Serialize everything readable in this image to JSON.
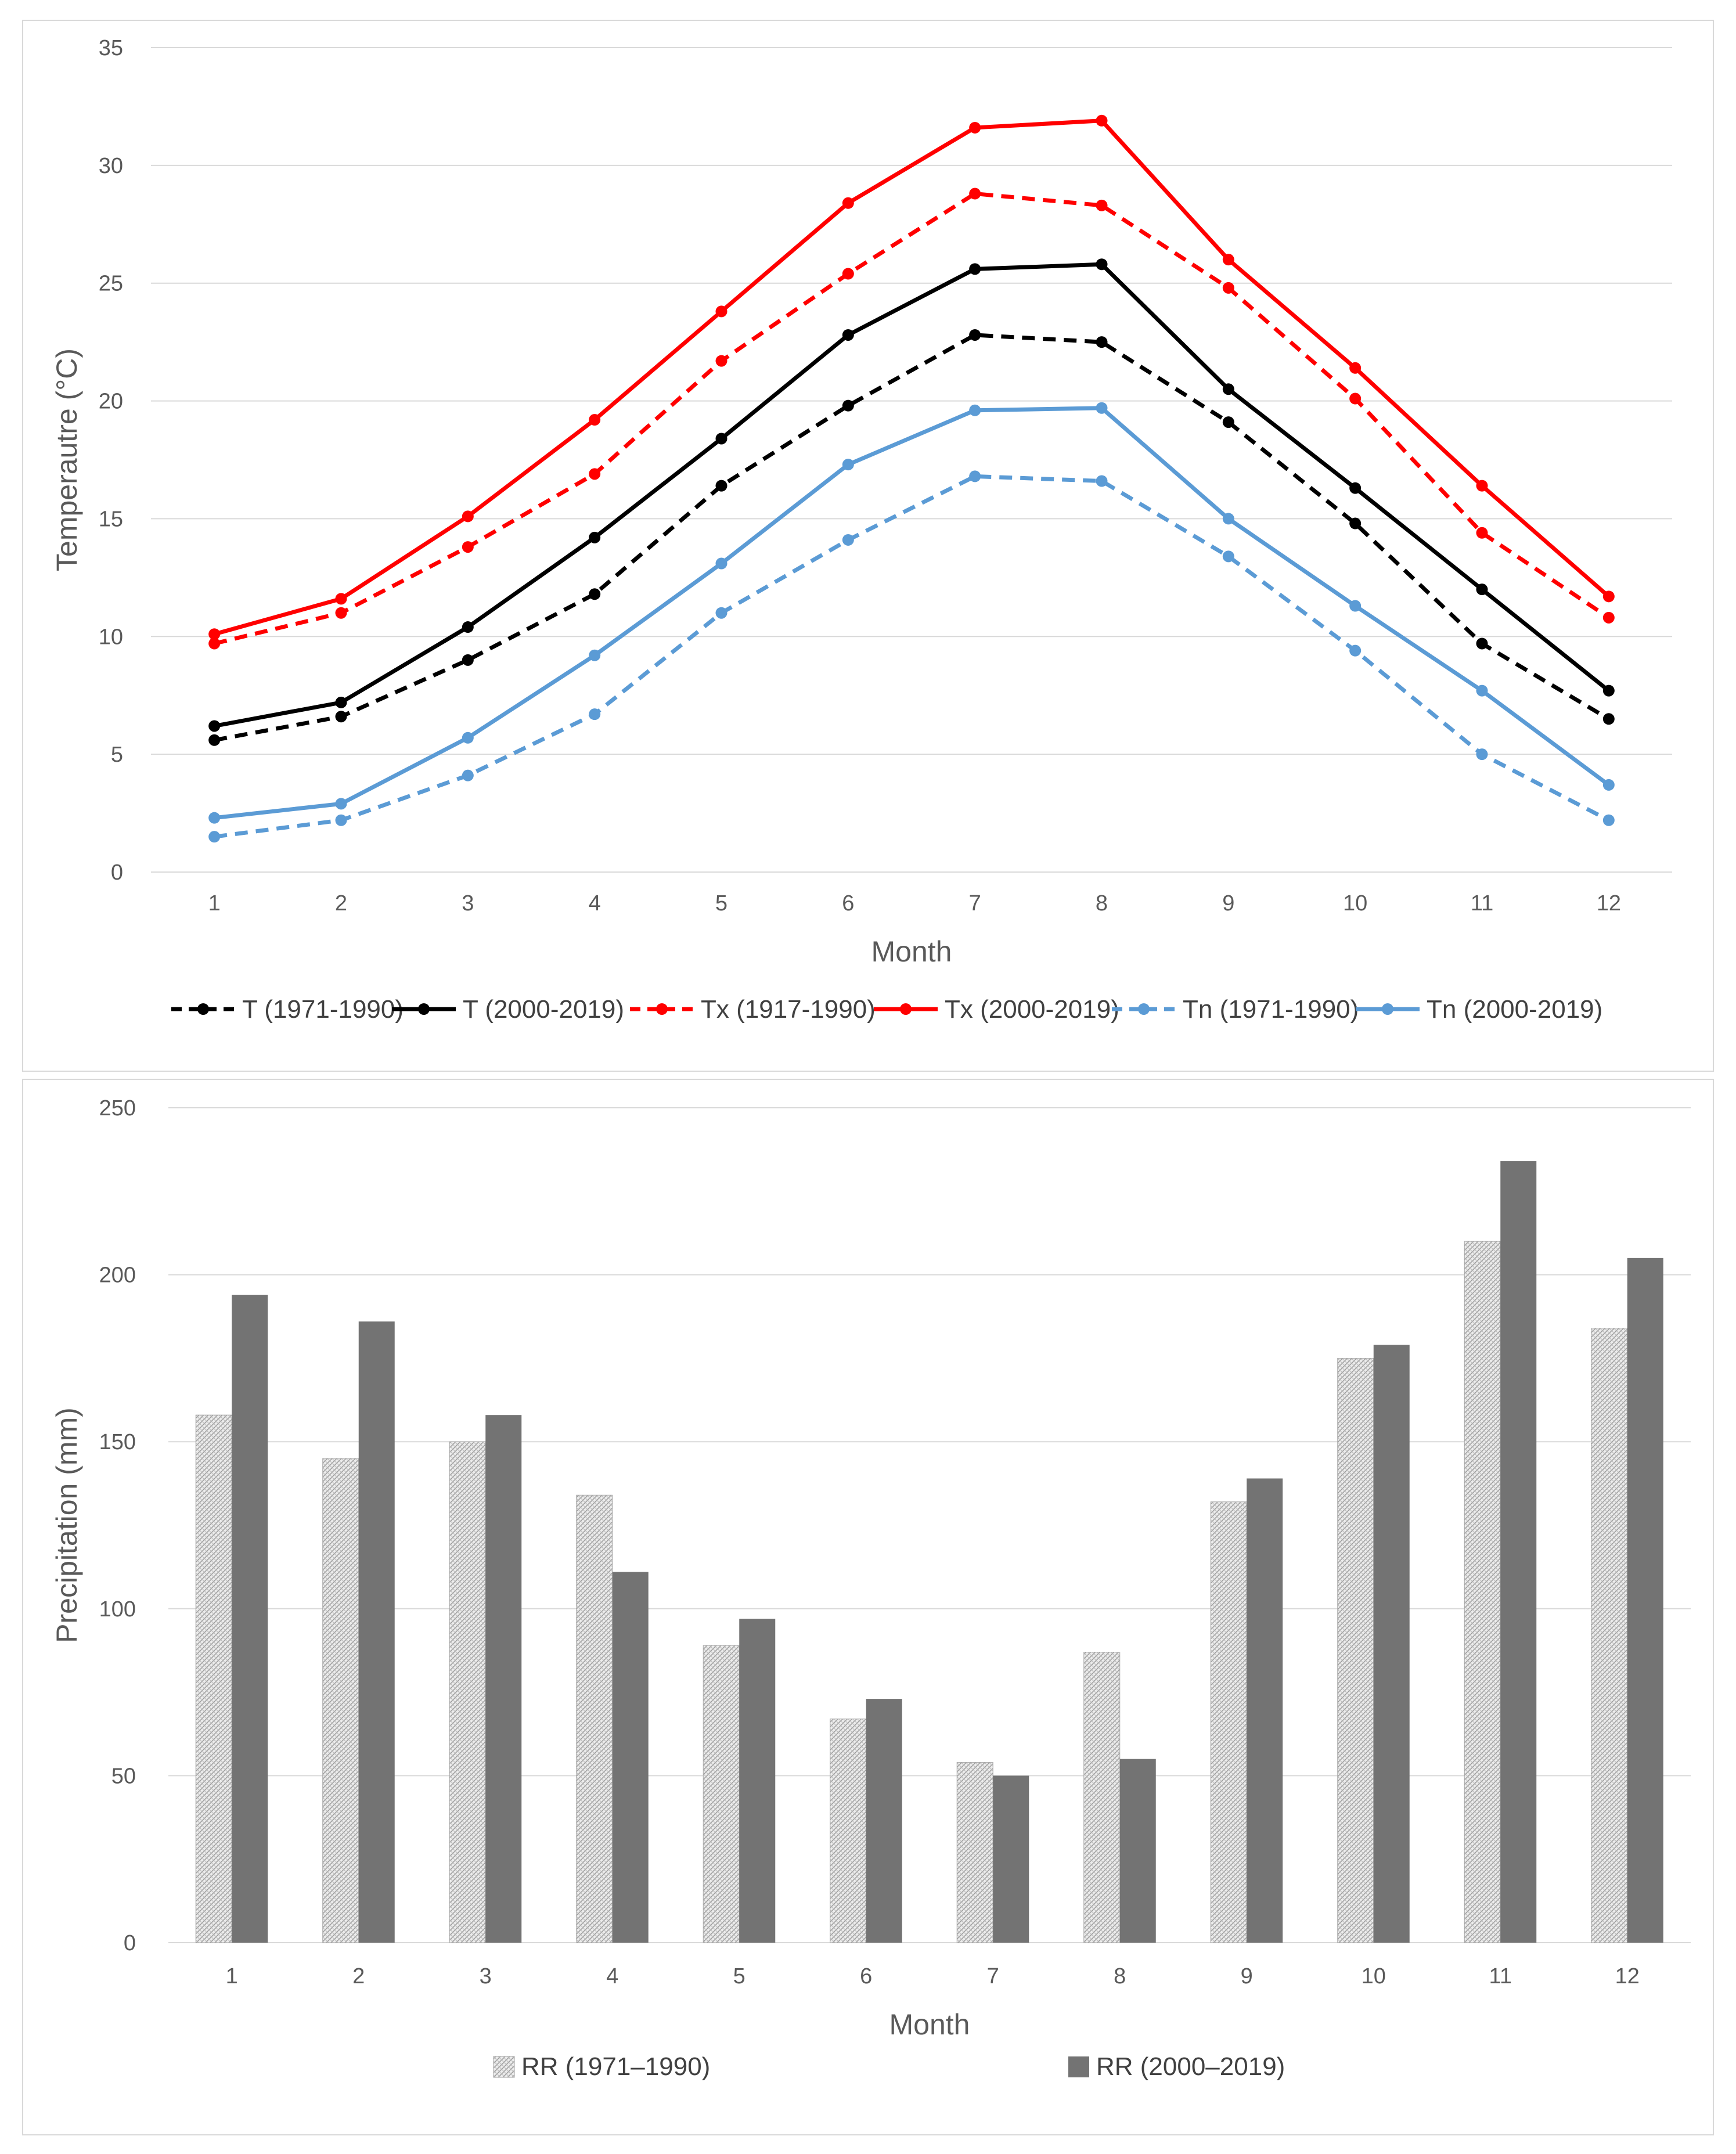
{
  "colors": {
    "black": "#000000",
    "red": "#ff0000",
    "blue": "#5b9bd5",
    "bar_dark": "#737373",
    "bar_light": "#d9d9d9",
    "grid": "#d9d9d9",
    "axis_text": "#595959"
  },
  "chart_data": [
    {
      "type": "line",
      "title": "",
      "xlabel": "Month",
      "ylabel": "Temperautre (°C)",
      "categories": [
        "1",
        "2",
        "3",
        "4",
        "5",
        "6",
        "7",
        "8",
        "9",
        "10",
        "11",
        "12"
      ],
      "ylim": [
        0,
        35
      ],
      "yticks": [
        "0",
        "5",
        "10",
        "15",
        "20",
        "25",
        "30",
        "35"
      ],
      "grid": true,
      "legend_position": "bottom",
      "series": [
        {
          "name": "T (1971-1990)",
          "color": "black",
          "dashed": true,
          "values": [
            5.6,
            6.6,
            9.0,
            11.8,
            16.4,
            19.8,
            22.8,
            22.5,
            19.1,
            14.8,
            9.7,
            6.5
          ]
        },
        {
          "name": "T (2000-2019)",
          "color": "black",
          "dashed": false,
          "values": [
            6.2,
            7.2,
            10.4,
            14.2,
            18.4,
            22.8,
            25.6,
            25.8,
            20.5,
            16.3,
            12.0,
            7.7
          ]
        },
        {
          "name": "Tx (1917-1990)",
          "color": "red",
          "dashed": true,
          "values": [
            9.7,
            11.0,
            13.8,
            16.9,
            21.7,
            25.4,
            28.8,
            28.3,
            24.8,
            20.1,
            14.4,
            10.8
          ]
        },
        {
          "name": "Tx (2000-2019)",
          "color": "red",
          "dashed": false,
          "values": [
            10.1,
            11.6,
            15.1,
            19.2,
            23.8,
            28.4,
            31.6,
            31.9,
            26.0,
            21.4,
            16.4,
            11.7
          ]
        },
        {
          "name": "Tn (1971-1990)",
          "color": "blue",
          "dashed": true,
          "values": [
            1.5,
            2.2,
            4.1,
            6.7,
            11.0,
            14.1,
            16.8,
            16.6,
            13.4,
            9.4,
            5.0,
            2.2
          ]
        },
        {
          "name": "Tn (2000-2019)",
          "color": "blue",
          "dashed": false,
          "values": [
            2.3,
            2.9,
            5.7,
            9.2,
            13.1,
            17.3,
            19.6,
            19.7,
            15.0,
            11.3,
            7.7,
            3.7
          ]
        }
      ]
    },
    {
      "type": "bar",
      "title": "",
      "xlabel": "Month",
      "ylabel": "Precipitation (mm)",
      "categories": [
        "1",
        "2",
        "3",
        "4",
        "5",
        "6",
        "7",
        "8",
        "9",
        "10",
        "11",
        "12"
      ],
      "ylim": [
        0,
        250
      ],
      "yticks": [
        "0",
        "50",
        "100",
        "150",
        "200",
        "250"
      ],
      "grid": true,
      "legend_position": "bottom",
      "series": [
        {
          "name": "RR (1971–1990)",
          "style": "hatched",
          "values": [
            158,
            145,
            150,
            134,
            89,
            67,
            54,
            87,
            132,
            175,
            210,
            184
          ]
        },
        {
          "name": "RR (2000–2019)",
          "style": "solid",
          "values": [
            194,
            186,
            158,
            111,
            97,
            73,
            50,
            55,
            139,
            179,
            234,
            205
          ]
        }
      ]
    }
  ]
}
